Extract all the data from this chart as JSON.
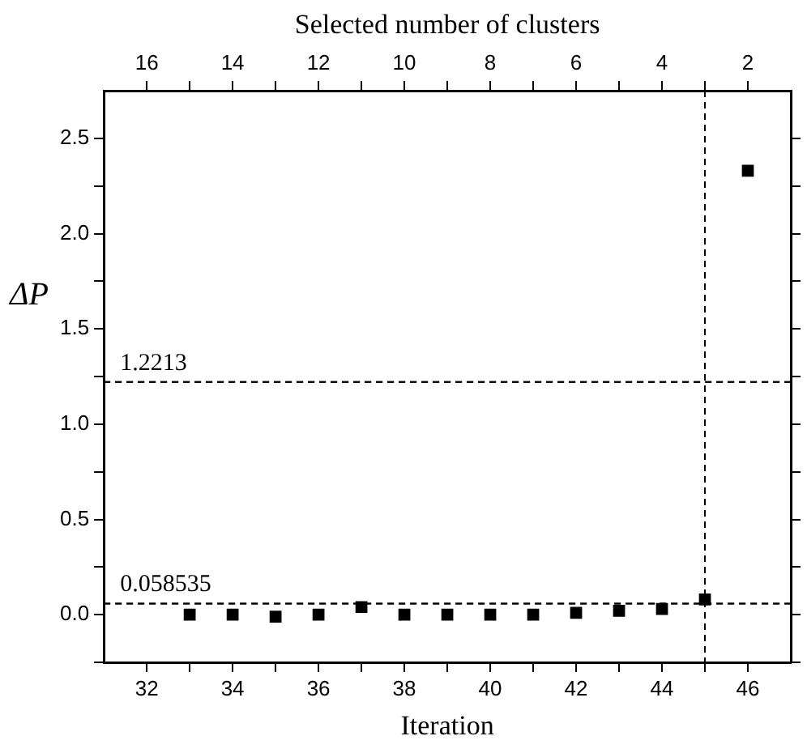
{
  "chart_data": {
    "type": "scatter",
    "xlabel": "Iteration",
    "ylabel": "ΔP",
    "x2label": "Selected number of clusters",
    "x": [
      33,
      34,
      35,
      36,
      37,
      38,
      39,
      40,
      41,
      42,
      43,
      44,
      45,
      46
    ],
    "series": [
      {
        "color": "#000000",
        "values": [
          0.0,
          0.0,
          -0.01,
          0.0,
          0.04,
          0.0,
          0.0,
          0.0,
          0.0,
          0.01,
          0.02,
          0.03,
          0.08,
          2.33
        ]
      }
    ],
    "xlim": [
      31,
      47
    ],
    "xticks": [
      32,
      {
        "value": 33,
        "label": null
      },
      34,
      {
        "value": 35,
        "label": null
      },
      36,
      {
        "value": 37,
        "label": null
      },
      38,
      {
        "value": 39,
        "label": null
      },
      40,
      {
        "value": 41,
        "label": null
      },
      42,
      {
        "value": 43,
        "label": null
      },
      44,
      {
        "value": 45,
        "label": null
      },
      46
    ],
    "x2lim": [
      17,
      1
    ],
    "x2ticks": [
      16,
      {
        "value": 15,
        "label": null
      },
      14,
      {
        "value": 13,
        "label": null
      },
      12,
      {
        "value": 11,
        "label": null
      },
      10,
      {
        "value": 9,
        "label": null
      },
      8,
      {
        "value": 7,
        "label": null
      },
      6,
      {
        "value": 5,
        "label": null
      },
      4,
      {
        "value": 3,
        "label": null
      },
      2
    ],
    "ylim": [
      -0.25,
      2.75
    ],
    "yticks": [
      {
        "value": -0.25,
        "label": null
      },
      {
        "value": 0,
        "label": "0.0"
      },
      {
        "value": 0.25,
        "label": null
      },
      0.5,
      {
        "value": 0.75,
        "label": null
      },
      {
        "value": 1,
        "label": "1.0"
      },
      {
        "value": 1.25,
        "label": null
      },
      1.5,
      {
        "value": 1.75,
        "label": null
      },
      {
        "value": 2,
        "label": "2.0"
      },
      {
        "value": 2.25,
        "label": null
      },
      2.5
    ],
    "ref_lines": [
      {
        "axis": "y",
        "value": 1.2213,
        "label": "1.2213",
        "line_style": "dashed"
      },
      {
        "axis": "y",
        "value": 0.058535,
        "label": "0.058535",
        "line_style": "dashed"
      },
      {
        "axis": "x",
        "value": 45,
        "line_style": "dashed"
      }
    ],
    "marker": "square",
    "grid": false,
    "legend": false
  }
}
